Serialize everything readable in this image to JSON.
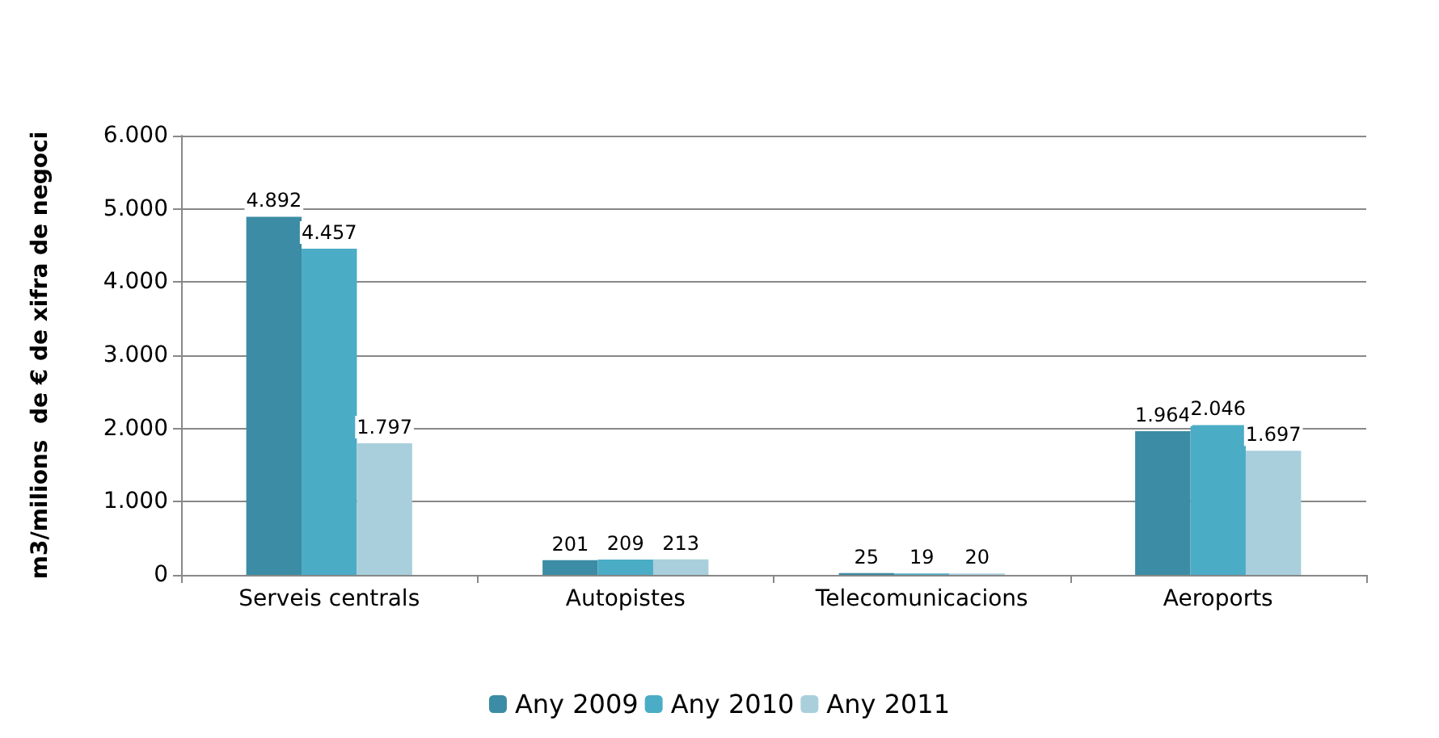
{
  "chart_data": {
    "type": "bar",
    "ylabel": "m3/milions  de € de xifra de negoci",
    "categories": [
      "Serveis centrals",
      "Autopistes",
      "Telecomunicacions",
      "Aeroports"
    ],
    "series": [
      {
        "name": "Any 2009",
        "color": "#3b8ca4",
        "values": [
          4892,
          201,
          25,
          1964
        ],
        "value_labels": [
          "4.892",
          "201",
          "25",
          "1.964"
        ]
      },
      {
        "name": "Any 2010",
        "color": "#4bacc6",
        "values": [
          4457,
          209,
          19,
          2046
        ],
        "value_labels": [
          "4.457",
          "209",
          "19",
          "2.046"
        ]
      },
      {
        "name": "Any 2011",
        "color": "#a9cfdc",
        "values": [
          1797,
          213,
          20,
          1697
        ],
        "value_labels": [
          "1.797",
          "213",
          "20",
          "1.697"
        ]
      }
    ],
    "ylim": [
      0,
      6000
    ],
    "yticks": [
      0,
      {
        "value": 1000,
        "label": "1.000"
      },
      {
        "value": 2000,
        "label": "2.000"
      },
      {
        "value": 3000,
        "label": "3.000"
      },
      {
        "value": 4000,
        "label": "4.000"
      },
      {
        "value": 5000,
        "label": "5.000"
      },
      {
        "value": 6000,
        "label": "6.000"
      }
    ],
    "grid": "y",
    "legend": "bottom"
  }
}
